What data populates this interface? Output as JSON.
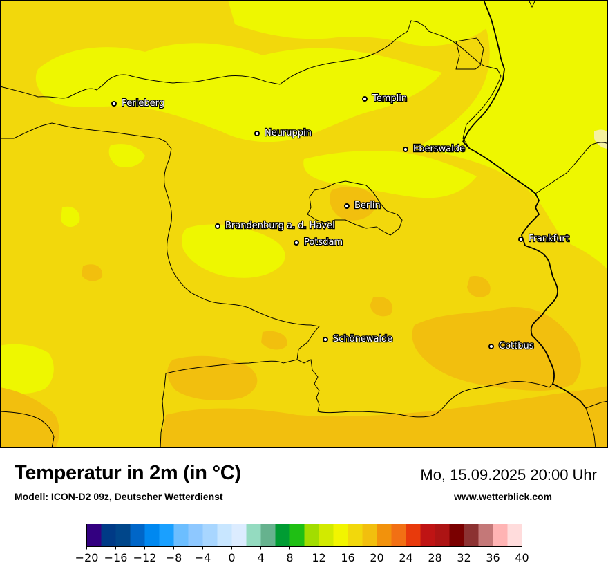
{
  "map": {
    "cities": [
      {
        "name": "Perleberg"
      },
      {
        "name": "Templin"
      },
      {
        "name": "Neuruppin"
      },
      {
        "name": "Eberswalde"
      },
      {
        "name": "Berlin"
      },
      {
        "name": "Brandenburg a. d. Havel"
      },
      {
        "name": "Potsdam"
      },
      {
        "name": "Frankfurt"
      },
      {
        "name": "Schönewalde"
      },
      {
        "name": "Cottbus"
      }
    ],
    "field_colors": {
      "base": "#f2d80c",
      "warm": "#f2bf0e",
      "cool": "#eef700",
      "pale": "#f5f1a0"
    }
  },
  "header": {
    "title": "Temperatur in 2m (in °C)",
    "model": "Modell: ICON-D2 09z, Deutscher Wetterdienst",
    "datetime": "Mo, 15.09.2025 20:00 Uhr",
    "website": "www.wetterblick.com"
  },
  "legend": {
    "min": -20,
    "max": 40,
    "colors": [
      "#330080",
      "#003a86",
      "#00468a",
      "#0066c8",
      "#0088f0",
      "#1aa0ff",
      "#6cbeff",
      "#8ec8ff",
      "#a8d6ff",
      "#c8e6ff",
      "#dcecff",
      "#94dbc0",
      "#66b28e",
      "#009c33",
      "#1fbf14",
      "#a2dd00",
      "#d2ea00",
      "#f2f500",
      "#f2d80c",
      "#f2bf0e",
      "#f2920c",
      "#f27014",
      "#e83a0c",
      "#bf1414",
      "#ad1414",
      "#7a0000",
      "#8c3232",
      "#c47878",
      "#ffb4b4",
      "#ffdcdc"
    ],
    "ticks": [
      "−20",
      "−16",
      "−12",
      "−8",
      "−4",
      "0",
      "4",
      "8",
      "12",
      "16",
      "20",
      "24",
      "28",
      "32",
      "36",
      "40"
    ]
  }
}
